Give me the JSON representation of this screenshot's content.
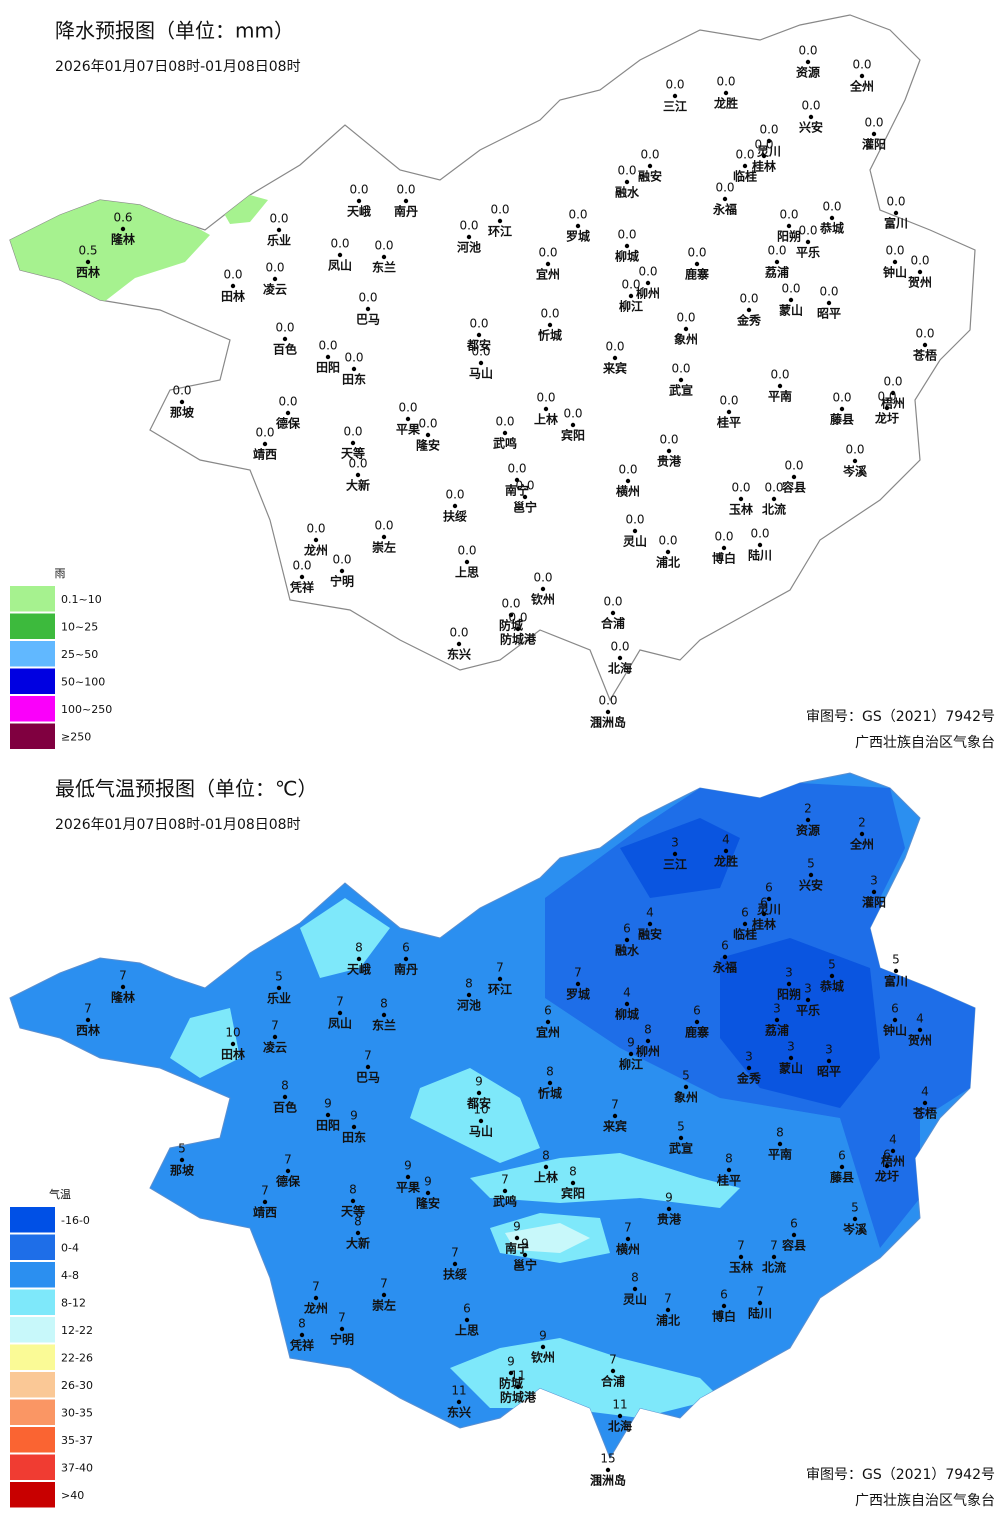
{
  "precip_map": {
    "title": "降水预报图（单位：mm）",
    "subtitle": "2026年01月07日08时-01月08日08时",
    "legend": {
      "title": "雨",
      "items": [
        {
          "label": "0.1~10",
          "color": "#a6f28f"
        },
        {
          "label": "10~25",
          "color": "#3dba3d"
        },
        {
          "label": "25~50",
          "color": "#61b8ff"
        },
        {
          "label": "50~100",
          "color": "#0000e1"
        },
        {
          "label": "100~250",
          "color": "#fa00fa"
        },
        {
          "label": "≥250",
          "color": "#800040"
        }
      ]
    },
    "stations": {
      "names": [
        "资源",
        "全州",
        "三江",
        "龙胜",
        "兴安",
        "灌阳",
        "灵川",
        "临桂",
        "桂林",
        "融安",
        "融水",
        "永福",
        "天峨",
        "南丹",
        "环江",
        "河池",
        "罗城",
        "乐业",
        "富川",
        "恭城",
        "阳朔",
        "平乐",
        "隆林",
        "西林",
        "凤山",
        "东兰",
        "宜州",
        "柳城",
        "鹿寨",
        "荔浦",
        "钟山",
        "贺州",
        "田林",
        "凌云",
        "柳州",
        "柳江",
        "金秀",
        "蒙山",
        "昭平",
        "巴马",
        "忻城",
        "都安",
        "马山",
        "象州",
        "百色",
        "田阳",
        "田东",
        "来宾",
        "苍梧",
        "武宣",
        "平南",
        "那坡",
        "德保",
        "平果",
        "隆安",
        "上林",
        "宾阳",
        "武鸣",
        "桂平",
        "藤县",
        "梧州",
        "龙圩",
        "靖西",
        "天等",
        "大新",
        "贵港",
        "岑溪",
        "南宁",
        "邕宁",
        "横州",
        "容县",
        "玉林",
        "北流",
        "扶绥",
        "龙州",
        "崇左",
        "灵山",
        "陆川",
        "博白",
        "浦北",
        "凭祥",
        "宁明",
        "上思",
        "钦州",
        "合浦",
        "防城",
        "防城港",
        "东兴",
        "北海",
        "涠洲岛"
      ],
      "values": [
        "0.0",
        "0.0",
        "0.0",
        "0.0",
        "0.0",
        "0.0",
        "0.0",
        "0.0",
        "0.0",
        "0.0",
        "0.0",
        "0.0",
        "0.0",
        "0.0",
        "0.0",
        "0.0",
        "0.0",
        "0.0",
        "0.0",
        "0.0",
        "0.0",
        "0.0",
        "0.6",
        "0.5",
        "0.0",
        "0.0",
        "0.0",
        "0.0",
        "0.0",
        "0.0",
        "0.0",
        "0.0",
        "0.0",
        "0.0",
        "0.0",
        "0.0",
        "0.0",
        "0.0",
        "0.0",
        "0.0",
        "0.0",
        "0.0",
        "0.0",
        "0.0",
        "0.0",
        "0.0",
        "0.0",
        "0.0",
        "0.0",
        "0.0",
        "0.0",
        "0.0",
        "0.0",
        "0.0",
        "0.0",
        "0.0",
        "0.0",
        "0.0",
        "0.0",
        "0.0",
        "0.0",
        "0.0",
        "0.0",
        "0.0",
        "0.0",
        "0.0",
        "0.0",
        "0.0",
        "0.0",
        "0.0",
        "0.0",
        "0.0",
        "0.0",
        "0.0",
        "0.0",
        "0.0",
        "0.0",
        "0.0",
        "0.0",
        "0.0",
        "0.0",
        "0.0",
        "0.0",
        "0.0",
        "0.0",
        "0.0",
        "0.0",
        "0.0",
        "0.0",
        "0.0"
      ]
    },
    "footer": [
      "审图号：GS（2021）7942号",
      "广西壮族自治区气象台"
    ]
  },
  "temp_map": {
    "title": "最低气温预报图（单位：℃）",
    "subtitle": "2026年01月07日08时-01月08日08时",
    "legend": {
      "title": "气温",
      "items": [
        {
          "label": "-16-0",
          "color": "#0050e6"
        },
        {
          "label": "0-4",
          "color": "#1e6ee8"
        },
        {
          "label": "4-8",
          "color": "#2b8ff0"
        },
        {
          "label": "8-12",
          "color": "#7ee8fa"
        },
        {
          "label": "12-22",
          "color": "#c8f8fa"
        },
        {
          "label": "22-26",
          "color": "#fafa96"
        },
        {
          "label": "26-30",
          "color": "#fac896"
        },
        {
          "label": "30-35",
          "color": "#fa9664"
        },
        {
          "label": "35-37",
          "color": "#fa6432"
        },
        {
          "label": "37-40",
          "color": "#f03c32"
        },
        {
          "label": ">40",
          "color": "#c80000"
        }
      ]
    },
    "stations": {
      "names": [
        "资源",
        "全州",
        "三江",
        "龙胜",
        "兴安",
        "灌阳",
        "灵川",
        "临桂",
        "桂林",
        "融安",
        "融水",
        "永福",
        "天峨",
        "南丹",
        "环江",
        "河池",
        "罗城",
        "乐业",
        "富川",
        "恭城",
        "阳朔",
        "平乐",
        "隆林",
        "西林",
        "凤山",
        "东兰",
        "宜州",
        "柳城",
        "鹿寨",
        "荔浦",
        "钟山",
        "贺州",
        "田林",
        "凌云",
        "柳州",
        "柳江",
        "金秀",
        "蒙山",
        "昭平",
        "巴马",
        "忻城",
        "都安",
        "马山",
        "象州",
        "百色",
        "田阳",
        "田东",
        "来宾",
        "苍梧",
        "武宣",
        "平南",
        "那坡",
        "德保",
        "平果",
        "隆安",
        "上林",
        "宾阳",
        "武鸣",
        "桂平",
        "藤县",
        "梧州",
        "龙圩",
        "靖西",
        "天等",
        "大新",
        "贵港",
        "岑溪",
        "南宁",
        "邕宁",
        "横州",
        "容县",
        "玉林",
        "北流",
        "扶绥",
        "龙州",
        "崇左",
        "灵山",
        "陆川",
        "博白",
        "浦北",
        "凭祥",
        "宁明",
        "上思",
        "钦州",
        "合浦",
        "防城",
        "防城港",
        "东兴",
        "北海",
        "涠洲岛"
      ],
      "values": [
        2,
        2,
        3,
        4,
        5,
        3,
        6,
        6,
        6,
        4,
        6,
        6,
        8,
        6,
        7,
        8,
        7,
        5,
        5,
        5,
        3,
        3,
        7,
        7,
        7,
        8,
        6,
        4,
        6,
        3,
        6,
        4,
        10,
        7,
        8,
        9,
        3,
        3,
        3,
        7,
        8,
        9,
        10,
        5,
        8,
        9,
        9,
        7,
        4,
        5,
        8,
        5,
        7,
        9,
        9,
        8,
        8,
        7,
        8,
        6,
        4,
        6,
        7,
        8,
        8,
        9,
        5,
        9,
        9,
        7,
        6,
        7,
        7,
        7,
        7,
        7,
        8,
        7,
        6,
        7,
        8,
        7,
        6,
        9,
        7,
        9,
        11,
        11,
        11,
        15
      ]
    },
    "footer": [
      "审图号：GS（2021）7942号",
      "广西壮族自治区气象台"
    ]
  }
}
